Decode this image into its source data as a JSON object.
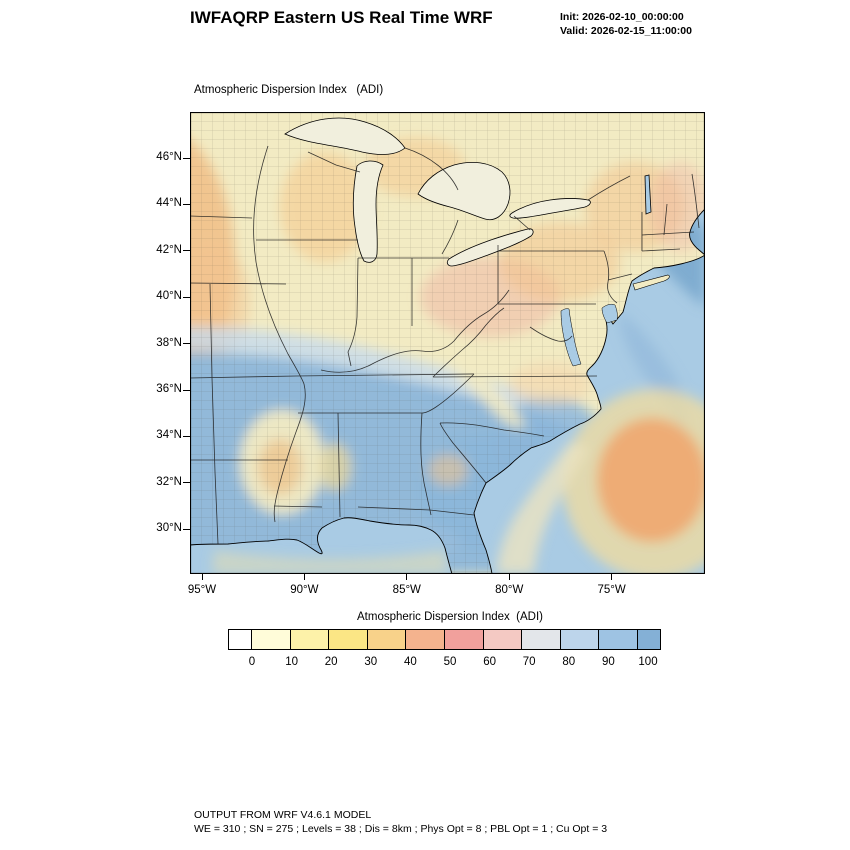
{
  "header": {
    "title": "IWFAQRP Eastern US Real Time WRF",
    "init": "Init: 2026-02-10_00:00:00",
    "valid": "Valid: 2026-02-15_11:00:00"
  },
  "map": {
    "field_label": "Atmospheric Dispersion Index   (ADI)",
    "lat_ticks": [
      "46°N",
      "44°N",
      "42°N",
      "40°N",
      "38°N",
      "36°N",
      "34°N",
      "32°N",
      "30°N"
    ],
    "lon_ticks": [
      "95°W",
      "90°W",
      "85°W",
      "80°W",
      "75°W"
    ]
  },
  "colorbar": {
    "label": "Atmospheric Dispersion Index  (ADI)",
    "tick_labels": [
      "0",
      "10",
      "20",
      "30",
      "40",
      "50",
      "60",
      "70",
      "80",
      "90",
      "100"
    ],
    "colors": [
      "#ffffff",
      "#fffcd9",
      "#fdf2a9",
      "#fbe685",
      "#f8d28a",
      "#f4b38e",
      "#f1a09c",
      "#f4c9c3",
      "#e3e6ea",
      "#bdd5eb",
      "#9ec3e3",
      "#84b0d6"
    ]
  },
  "footer": {
    "line1": "OUTPUT FROM WRF V4.6.1 MODEL",
    "line2": "WE = 310 ; SN = 275 ; Levels = 38 ; Dis = 8km ; Phys Opt = 8 ; PBL Opt = 1 ; Cu Opt = 3"
  },
  "chart_data": {
    "type": "heatmap",
    "title": "Atmospheric Dispersion Index (ADI)",
    "x_ticks": [
      "95°W",
      "90°W",
      "85°W",
      "80°W",
      "75°W"
    ],
    "y_ticks": [
      "46°N",
      "44°N",
      "42°N",
      "40°N",
      "38°N",
      "36°N",
      "34°N",
      "32°N",
      "30°N"
    ],
    "colorbar_range": [
      0,
      100
    ],
    "colorbar_ticks": [
      0,
      10,
      20,
      30,
      40,
      50,
      60,
      70,
      80,
      90,
      100
    ],
    "legend_position": "bottom"
  }
}
